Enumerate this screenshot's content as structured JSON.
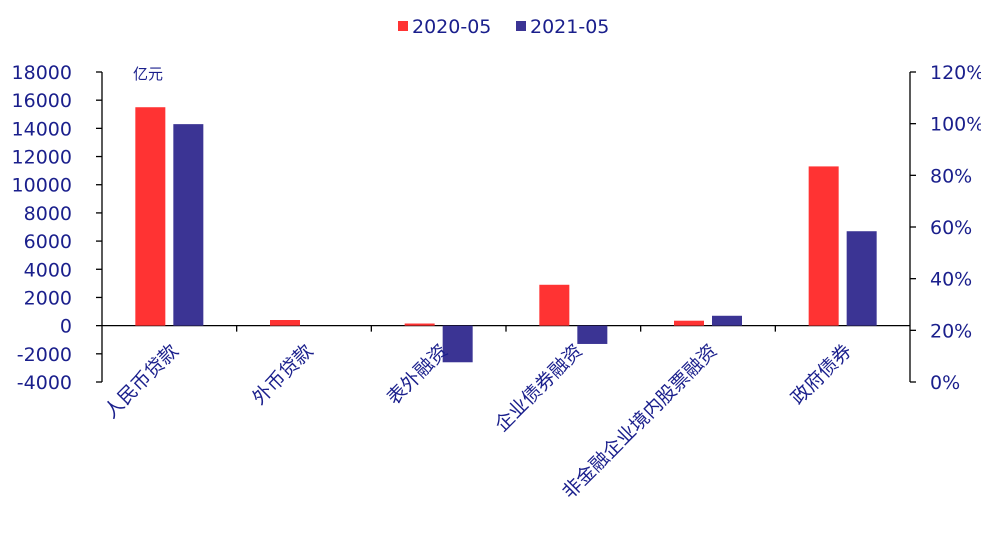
{
  "chart_data": {
    "type": "bar",
    "categories": [
      "人民币贷款",
      "外币贷款",
      "表外融资",
      "企业债券融资",
      "非金融企业境内股票融资",
      "政府债券"
    ],
    "series": [
      {
        "name": "2020-05",
        "color": "#ff3333",
        "values": [
          15500,
          400,
          150,
          2900,
          350,
          11300
        ]
      },
      {
        "name": "2021-05",
        "color": "#3b3494",
        "values": [
          14300,
          0,
          -2600,
          -1300,
          700,
          6700
        ]
      }
    ],
    "y_left": {
      "unit": "亿元",
      "ylim": [
        -4000,
        18000
      ],
      "ticks": [
        -4000,
        -2000,
        0,
        2000,
        4000,
        6000,
        8000,
        10000,
        12000,
        14000,
        16000,
        18000
      ]
    },
    "y_right": {
      "ylim": [
        0,
        120
      ],
      "ticks": [
        "0%",
        "20%",
        "40%",
        "60%",
        "80%",
        "100%",
        "120%"
      ]
    },
    "legend_position": "top-center",
    "grid": false,
    "axis_color": "#000000",
    "label_color": "#1a1f8c"
  }
}
